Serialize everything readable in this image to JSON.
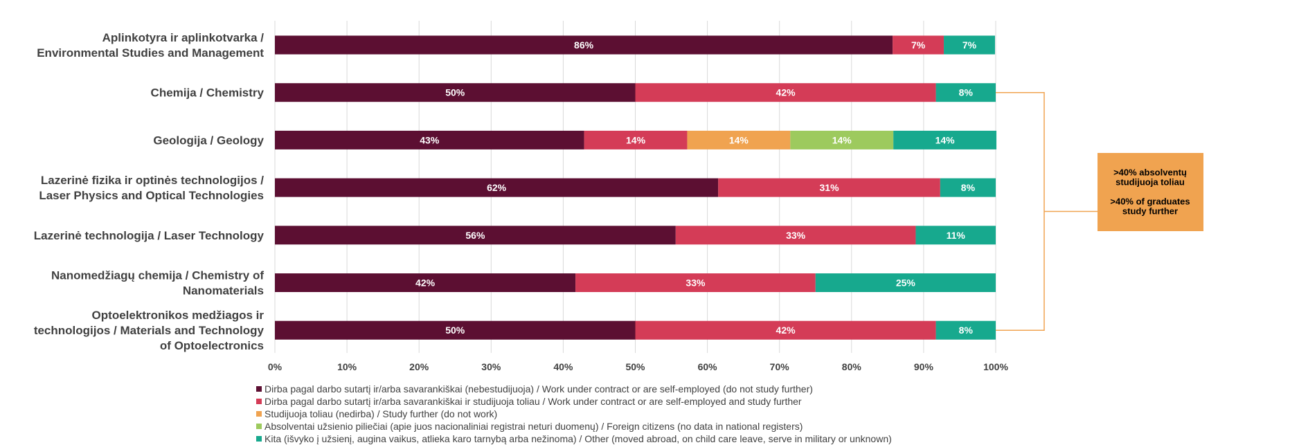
{
  "chart_data": {
    "type": "bar",
    "orientation": "horizontal",
    "stacked": true,
    "title": "",
    "xlabel": "",
    "ylabel": "",
    "xlim": [
      0,
      100
    ],
    "x_ticks": [
      "0%",
      "10%",
      "20%",
      "30%",
      "40%",
      "50%",
      "60%",
      "70%",
      "80%",
      "90%",
      "100%"
    ],
    "grid": true,
    "legend_position": "bottom-left",
    "categories": [
      [
        "Aplinkotyra ir aplinkotvarka /",
        "Environmental Studies and Management"
      ],
      [
        "Chemija / Chemistry"
      ],
      [
        "Geologija / Geology"
      ],
      [
        "Lazerinė fizika ir optinės technologijos /",
        "Laser Physics and Optical Technologies"
      ],
      [
        "Lazerinė technologija / Laser Technology"
      ],
      [
        "Nanomedžiagų chemija / Chemistry of",
        "Nanomaterials"
      ],
      [
        "Optoelektronikos medžiagos ir",
        "technologijos / Materials and Technology",
        "of Optoelectronics"
      ]
    ],
    "series": [
      {
        "name": "Dirba pagal darbo sutartį ir/arba savarankiškai (nebestudijuoja) / Work under contract or are self-employed (do not study further)",
        "color": "#5c0f32",
        "values": [
          85.7,
          50,
          42.9,
          61.5,
          55.6,
          41.7,
          50
        ],
        "labels": [
          "86%",
          "50%",
          "43%",
          "62%",
          "56%",
          "42%",
          "50%"
        ]
      },
      {
        "name": "Dirba pagal darbo sutartį ir/arba savarankiškai  ir studijuoja toliau / Work under contract or are self-employed and study further",
        "color": "#d43c57",
        "values": [
          7.1,
          41.7,
          14.3,
          30.8,
          33.3,
          33.3,
          41.7
        ],
        "labels": [
          "7%",
          "42%",
          "14%",
          "31%",
          "33%",
          "33%",
          "42%"
        ]
      },
      {
        "name": "Studijuoja toliau (nedirba) / Study further (do not work)",
        "color": "#f0a350",
        "values": [
          0,
          0,
          14.3,
          0,
          0,
          0,
          0
        ],
        "labels": [
          "",
          "",
          "14%",
          "",
          "",
          "",
          ""
        ]
      },
      {
        "name": "Absolventai užsienio piliečiai (apie juos nacionaliniai registrai neturi duomenų) / Foreign citizens (no data in national registers)",
        "color": "#9dca5e",
        "values": [
          0,
          0,
          14.3,
          0,
          0,
          0,
          0
        ],
        "labels": [
          "",
          "",
          "14%",
          "",
          "",
          "",
          ""
        ]
      },
      {
        "name": "Kita (išvyko į užsienį, augina vaikus, atlieka karo tarnybą arba nežinoma) / Other (moved abroad, on child care leave, serve in military or unknown)",
        "color": "#17a98e",
        "values": [
          7.1,
          8.3,
          14.3,
          7.7,
          11.1,
          25,
          8.3
        ],
        "labels": [
          "7%",
          "8%",
          "14%",
          "8%",
          "11%",
          "25%",
          "8%"
        ]
      }
    ],
    "annotation": {
      "lines": [
        ">40% absolventų",
        "studijuoja toliau",
        "",
        ">40% of graduates",
        "study further"
      ],
      "color": "#f0a350",
      "bracket_from_category": 1,
      "bracket_to_category": 6
    }
  }
}
